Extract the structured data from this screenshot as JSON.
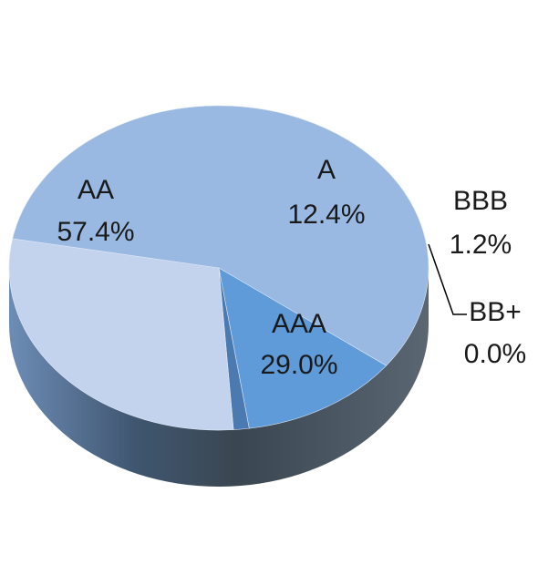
{
  "chart_data": {
    "type": "pie",
    "title": "",
    "categories": [
      "AAA",
      "AA",
      "A",
      "BBB",
      "BB+"
    ],
    "values": [
      29.0,
      57.4,
      12.4,
      1.2,
      0.0
    ],
    "value_labels": [
      "29.0%",
      "57.4%",
      "12.4%",
      "1.2%",
      "0.0%"
    ],
    "style": "3d-tilted",
    "legend": "none",
    "colors": [
      "#c3d3ee",
      "#99b9e3",
      "#5f9bd8",
      "#4a7ab0",
      "#7e9cc4"
    ]
  }
}
